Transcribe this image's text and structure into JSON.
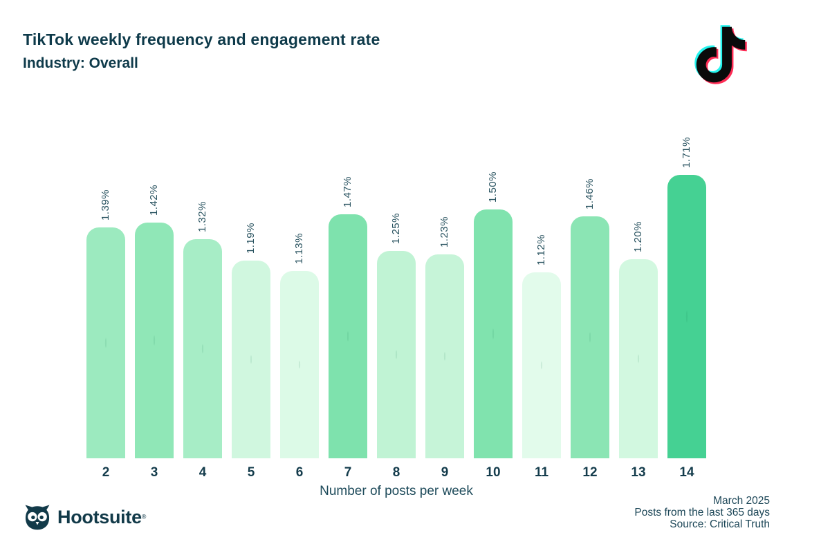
{
  "header": {
    "title": "TikTok weekly frequency and engagement rate",
    "subtitle": "Industry: Overall"
  },
  "chart_data": {
    "type": "bar",
    "title": "TikTok weekly frequency and engagement rate",
    "subtitle": "Industry: Overall",
    "categories": [
      "2",
      "3",
      "4",
      "5",
      "6",
      "7",
      "8",
      "9",
      "10",
      "11",
      "12",
      "13",
      "14"
    ],
    "values": [
      1.39,
      1.42,
      1.32,
      1.19,
      1.13,
      1.47,
      1.25,
      1.23,
      1.5,
      1.12,
      1.46,
      1.2,
      1.71
    ],
    "value_labels": [
      "1.39%",
      "1.42%",
      "1.32%",
      "1.19%",
      "1.13%",
      "1.47%",
      "1.25%",
      "1.23%",
      "1.50%",
      "1.12%",
      "1.46%",
      "1.20%",
      "1.71%"
    ],
    "bar_colors": [
      "#9ceabf",
      "#90e7b7",
      "#a7edc6",
      "#d0f7df",
      "#dcfae7",
      "#7ee2ad",
      "#c0f3d4",
      "#c6f4d8",
      "#80e3ae",
      "#e2fbeb",
      "#8be5b4",
      "#d2f8e0",
      "#45d193"
    ],
    "xlabel": "Number of posts per week",
    "ylabel": "",
    "unit": "%",
    "ylim": [
      0,
      1.8
    ],
    "grid": false,
    "legend": false
  },
  "footer": {
    "brand": "Hootsuite",
    "brand_mark": "®",
    "lines": [
      "March 2025",
      "Posts from the last 365 days",
      "Source: Critical Truth"
    ]
  },
  "colors": {
    "text_dark": "#0e3a4a",
    "bar_min": "#e2fbeb",
    "bar_max": "#45d193",
    "tiktok_cyan": "#25f4ee",
    "tiktok_red": "#fe2c55",
    "tiktok_black": "#0a0a0a"
  }
}
